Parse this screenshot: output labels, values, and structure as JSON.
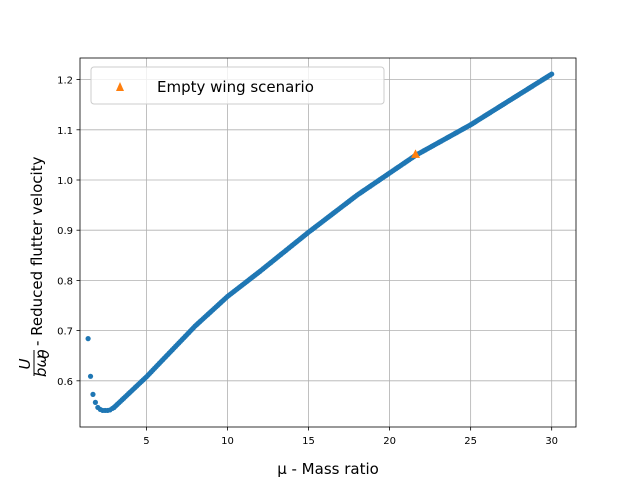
{
  "chart_data": {
    "type": "scatter",
    "xlabel": "μ - Mass ratio",
    "ylabel_fraction_num": "U",
    "ylabel_fraction_den": "bω",
    "ylabel_fraction_den_sub": "θ",
    "ylabel_text": " - Reduced flutter velocity",
    "xlim": [
      0.9,
      31.5
    ],
    "ylim": [
      0.508,
      1.243
    ],
    "x_ticks": [
      5,
      10,
      15,
      20,
      25,
      30
    ],
    "y_ticks": [
      0.6,
      0.7,
      0.8,
      0.9,
      1.0,
      1.1,
      1.2
    ],
    "x_tick_labels": [
      "5",
      "10",
      "15",
      "20",
      "25",
      "30"
    ],
    "y_tick_labels": [
      "0.6",
      "0.7",
      "0.8",
      "0.9",
      "1.0",
      "1.1",
      "1.2"
    ],
    "grid": true,
    "legend_position": "upper-left",
    "series": [
      {
        "marker": "circle",
        "color": "#1f77b4",
        "points": [
          [
            1.4,
            0.684
          ],
          [
            1.55,
            0.609
          ],
          [
            1.7,
            0.573
          ],
          [
            1.85,
            0.557
          ],
          [
            2.0,
            0.547
          ],
          [
            2.15,
            0.543
          ],
          [
            2.3,
            0.541
          ],
          [
            2.45,
            0.541
          ],
          [
            2.6,
            0.541
          ],
          [
            2.75,
            0.542
          ],
          [
            2.9,
            0.545
          ],
          [
            3.0,
            0.547
          ]
        ],
        "curve": [
          [
            3.0,
            0.547
          ],
          [
            5.0,
            0.608
          ],
          [
            8.0,
            0.709
          ],
          [
            10.0,
            0.768
          ],
          [
            12.0,
            0.818
          ],
          [
            15.0,
            0.896
          ],
          [
            18.0,
            0.97
          ],
          [
            21.6,
            1.049
          ],
          [
            25.0,
            1.11
          ],
          [
            30.0,
            1.211
          ]
        ]
      },
      {
        "name": "Empty wing scenario",
        "marker": "triangle",
        "color": "#ff7f0e",
        "points": [
          [
            21.6,
            1.051
          ]
        ]
      }
    ]
  }
}
